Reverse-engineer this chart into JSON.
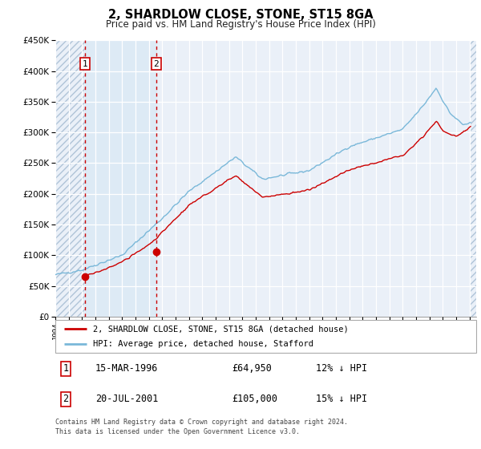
{
  "title": "2, SHARDLOW CLOSE, STONE, ST15 8GA",
  "subtitle": "Price paid vs. HM Land Registry's House Price Index (HPI)",
  "ylim": [
    0,
    450000
  ],
  "yticks": [
    0,
    50000,
    100000,
    150000,
    200000,
    250000,
    300000,
    350000,
    400000,
    450000
  ],
  "xlim_start": 1994.0,
  "xlim_end": 2025.5,
  "xtick_years": [
    1994,
    1995,
    1996,
    1997,
    1998,
    1999,
    2000,
    2001,
    2002,
    2003,
    2004,
    2005,
    2006,
    2007,
    2008,
    2009,
    2010,
    2011,
    2012,
    2013,
    2014,
    2015,
    2016,
    2017,
    2018,
    2019,
    2020,
    2021,
    2022,
    2023,
    2024,
    2025
  ],
  "hpi_color": "#7ab8d9",
  "price_color": "#cc0000",
  "sale1_date": 1996.21,
  "sale1_price": 64950,
  "sale1_label": "1",
  "sale2_date": 2001.55,
  "sale2_price": 105000,
  "sale2_label": "2",
  "shade_start": 1996.21,
  "shade_end": 2001.55,
  "shade_color": "#ddeaf5",
  "hatch_color": "#c8d8e8",
  "vline_color": "#cc0000",
  "legend_label_price": "2, SHARDLOW CLOSE, STONE, ST15 8GA (detached house)",
  "legend_label_hpi": "HPI: Average price, detached house, Stafford",
  "table_row1_label": "1",
  "table_row1_date": "15-MAR-1996",
  "table_row1_price": "£64,950",
  "table_row1_hpi": "12% ↓ HPI",
  "table_row2_label": "2",
  "table_row2_date": "20-JUL-2001",
  "table_row2_price": "£105,000",
  "table_row2_hpi": "15% ↓ HPI",
  "footnote1": "Contains HM Land Registry data © Crown copyright and database right 2024.",
  "footnote2": "This data is licensed under the Open Government Licence v3.0.",
  "bg_color": "#ffffff",
  "plot_bg_color": "#eaf0f8",
  "grid_color": "#ffffff"
}
